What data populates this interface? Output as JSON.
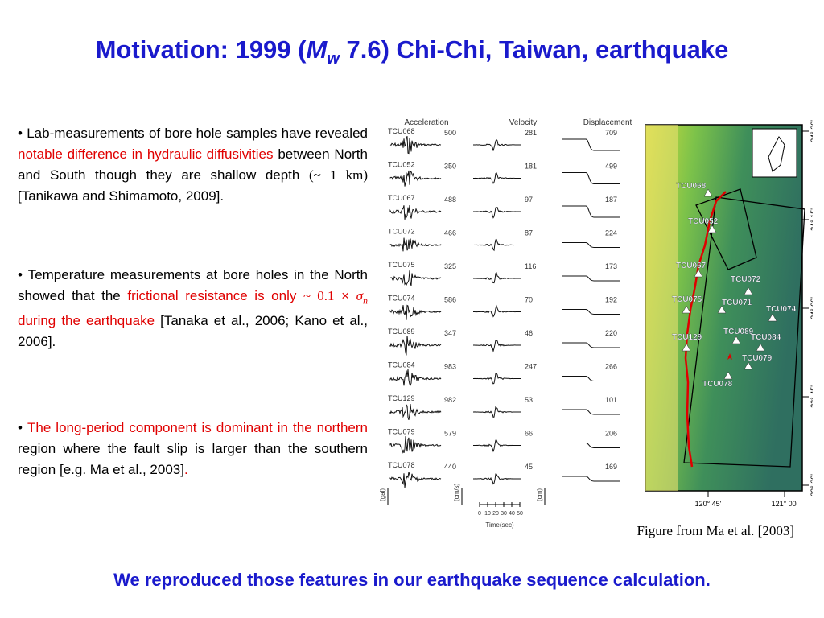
{
  "title": {
    "before": "Motivation: 1999 (",
    "italic": "M",
    "sub": "w",
    "after": " 7.6) Chi-Chi, Taiwan, earthquake"
  },
  "bullets": [
    [
      {
        "text": "Lab-measurements of bore hole samples have revealed "
      },
      {
        "text": "notable difference in hydraulic diffusivities",
        "color": "#e00000"
      },
      {
        "text": " between North and South though they are shallow depth "
      },
      {
        "text": "(~ 1 km)",
        "font": "serif"
      },
      {
        "text": " [Tanikawa and Shimamoto, 2009]."
      }
    ],
    [
      {
        "text": "Temperature measurements at bore holes in the North showed that the "
      },
      {
        "text": "frictional resistance is only ",
        "color": "#e00000"
      },
      {
        "text": "~ 0.1",
        "color": "#e00000",
        "font": "serif"
      },
      {
        "text": " × ",
        "color": "#e00000"
      },
      {
        "text": "σ",
        "color": "#e00000",
        "font": "serif",
        "italic": true
      },
      {
        "text": "n",
        "color": "#e00000",
        "font": "serif",
        "italic": true,
        "sub": true
      },
      {
        "text": " during the earthquake",
        "color": "#e00000"
      },
      {
        "text": " [Tanaka et al., 2006; Kano et al., 2006]."
      }
    ],
    [
      {
        "text": "The long-period component is dominant in the northern",
        "color": "#e00000"
      },
      {
        "text": " region where the fault slip is larger than the southern region [e.g. Ma et al., 2003]"
      },
      {
        "text": ".",
        "color": "#e00000"
      }
    ]
  ],
  "figure": {
    "headers": [
      "Acceleration",
      "Velocity",
      "Displacement"
    ],
    "rows": [
      [
        "TCU068",
        "500",
        "281",
        "709"
      ],
      [
        "TCU052",
        "350",
        "181",
        "499"
      ],
      [
        "TCU067",
        "488",
        "97",
        "187"
      ],
      [
        "TCU072",
        "466",
        "87",
        "224"
      ],
      [
        "TCU075",
        "325",
        "116",
        "173"
      ],
      [
        "TCU074",
        "586",
        "70",
        "192"
      ],
      [
        "TCU089",
        "347",
        "46",
        "220"
      ],
      [
        "TCU084",
        "983",
        "247",
        "266"
      ],
      [
        "TCU129",
        "982",
        "53",
        "101"
      ],
      [
        "TCU079",
        "579",
        "66",
        "206"
      ],
      [
        "TCU078",
        "440",
        "45",
        "169"
      ]
    ],
    "units": [
      "(gal)",
      "(cm/s)",
      "(cm)"
    ],
    "time_ticks": [
      "0",
      "10",
      "20",
      "30",
      "40",
      "50"
    ],
    "time_label": "Time(sec)",
    "map": {
      "lat_labels": [
        "24° 30'",
        "24° 15'",
        "24° 00'",
        "23° 45'",
        "23° 30'"
      ],
      "lon_labels": [
        "120° 45'",
        "121° 00'"
      ],
      "stations": [
        "TCU068",
        "TCU052",
        "TCU067",
        "TCU072",
        "TCU075",
        "TCU071",
        "TCU074",
        "TCU089",
        "TCU084",
        "TCU129",
        "TCU079",
        "TCU078"
      ]
    }
  },
  "caption": "Figure from Ma et al. [2003]",
  "footer": "We reproduced those features in our earthquake sequence calculation."
}
